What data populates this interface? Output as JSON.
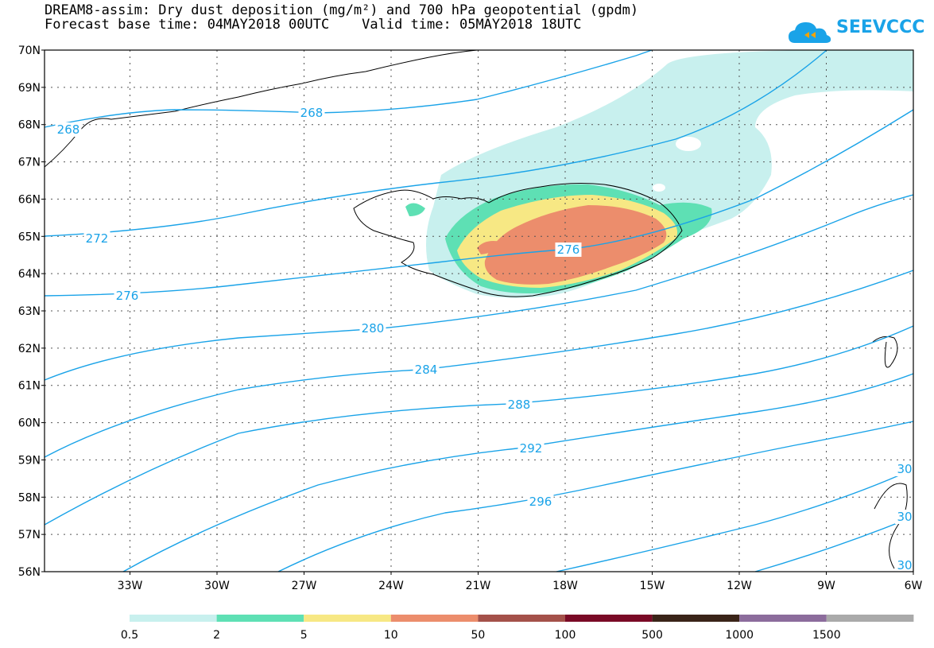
{
  "title": {
    "line1": "DREAM8-assim: Dry dust deposition (mg/m²) and 700 hPa geopotential (gpdm)",
    "line2": "Forecast base time: 04MAY2018 00UTC    Valid time: 05MAY2018 18UTC"
  },
  "logo": {
    "text": "SEEVCCC",
    "icon": "cloud-icon"
  },
  "axes": {
    "lat_labels": [
      "70N",
      "69N",
      "68N",
      "67N",
      "66N",
      "65N",
      "64N",
      "63N",
      "62N",
      "61N",
      "60N",
      "59N",
      "58N",
      "57N",
      "56N"
    ],
    "lon_labels": [
      "33W",
      "30W",
      "27W",
      "24W",
      "21W",
      "18W",
      "15W",
      "12W",
      "9W",
      "6W"
    ]
  },
  "contours": [
    {
      "level": "268"
    },
    {
      "level": "268"
    },
    {
      "level": "272"
    },
    {
      "level": "276"
    },
    {
      "level": "276"
    },
    {
      "level": "280"
    },
    {
      "level": "284"
    },
    {
      "level": "288"
    },
    {
      "level": "292"
    },
    {
      "level": "296"
    },
    {
      "level": "30"
    },
    {
      "level": "30"
    },
    {
      "level": "30"
    }
  ],
  "legend": {
    "colors": [
      "#c8f0ee",
      "#5ee0b4",
      "#f7e884",
      "#ec8d6c",
      "#a4514a",
      "#7a0a26",
      "#3a2418",
      "#8c6c9c",
      "#aaaaaa"
    ],
    "labels": [
      "0.5",
      "2",
      "5",
      "10",
      "50",
      "100",
      "500",
      "1000",
      "1500"
    ]
  },
  "colors": {
    "contour": "#1aa3e8"
  }
}
